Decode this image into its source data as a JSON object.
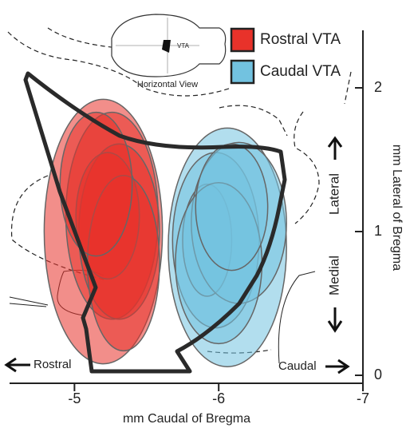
{
  "chart_data": {
    "type": "ellipse",
    "xlabel": "mm Caudal of Bregma",
    "ylabel": "mm Lateral of Bregma",
    "xlim": [
      -4.55,
      -7.0
    ],
    "xticks": [
      -5,
      -6,
      -7
    ],
    "ylim": [
      0,
      2.4
    ],
    "yticks": [
      0,
      1,
      2
    ],
    "inset": {
      "label": "VTA",
      "caption": "Horizontal View"
    },
    "annotations": {
      "lateral": "Lateral",
      "medial": "Medial",
      "rostral": "Rostral",
      "caudal": "Caudal"
    },
    "series": [
      {
        "name": "Rostral VTA",
        "color": "#e8322a",
        "x": [
          -5.2,
          -5.26,
          -5.31,
          -5.23,
          -5.34,
          -5.15
        ],
        "y": [
          1.0,
          1.11,
          1.0,
          1.11,
          0.78,
          1.33
        ],
        "rx": [
          0.41,
          0.32,
          0.28,
          0.22,
          0.25,
          0.25
        ],
        "ry": [
          0.92,
          0.72,
          0.61,
          0.44,
          0.61,
          0.5
        ]
      },
      {
        "name": "Caudal VTA",
        "color": "#72c2e0",
        "x": [
          -6.06,
          -5.98,
          -5.92,
          -6.14,
          -6.0,
          -6.09
        ],
        "y": [
          0.89,
          0.94,
          0.94,
          1.06,
          0.78,
          1.17
        ],
        "rx": [
          0.41,
          0.3,
          0.17,
          0.33,
          0.3,
          0.25
        ],
        "ry": [
          0.83,
          0.61,
          0.39,
          0.56,
          0.56,
          0.44
        ]
      }
    ]
  }
}
